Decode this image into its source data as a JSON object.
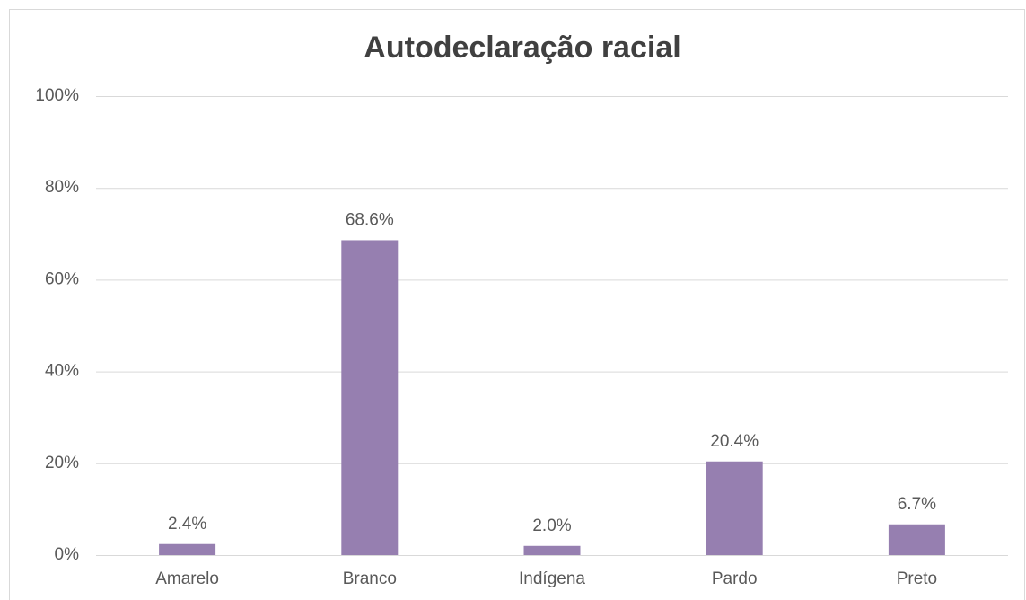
{
  "chart_data": {
    "type": "bar",
    "title": "Autodeclaração racial",
    "categories": [
      "Amarelo",
      "Branco",
      "Indígena",
      "Pardo",
      "Preto"
    ],
    "values": [
      2.4,
      68.6,
      2.0,
      20.4,
      6.7
    ],
    "value_labels": [
      "2.4%",
      "68.6%",
      "2.0%",
      "20.4%",
      "6.7%"
    ],
    "color": "#967fb0",
    "ylim": [
      0,
      100
    ],
    "yticks": [
      {
        "value": 0,
        "label": "0%"
      },
      {
        "value": 20,
        "label": "20%"
      },
      {
        "value": 40,
        "label": "40%"
      },
      {
        "value": 60,
        "label": "60%"
      },
      {
        "value": 80,
        "label": "80%"
      },
      {
        "value": 100,
        "label": "100%"
      }
    ],
    "grid": true
  }
}
